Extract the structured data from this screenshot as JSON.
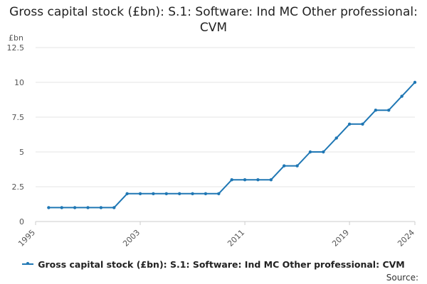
{
  "chart_data": {
    "type": "line",
    "title": "Gross capital stock (£bn): S.1: Software: Ind MC Other professional: CVM",
    "ylabel": "£bn",
    "xlabel": "",
    "xlim": [
      1995,
      2024
    ],
    "ylim": [
      0,
      12.5
    ],
    "yticks": [
      0,
      2.5,
      5,
      7.5,
      10,
      12.5
    ],
    "ytick_labels": [
      "0",
      "2.5",
      "5",
      "7.5",
      "10",
      "12.5"
    ],
    "xticks": [
      1995,
      2003,
      2011,
      2019,
      2024
    ],
    "xtick_labels": [
      "1995",
      "2003",
      "2011",
      "2019",
      "2024"
    ],
    "grid": true,
    "legend_position": "bottom",
    "color": "#1f77b4",
    "series": [
      {
        "name": "Gross capital stock (£bn): S.1: Software: Ind MC Other professional: CVM",
        "x": [
          1996,
          1997,
          1998,
          1999,
          2000,
          2001,
          2002,
          2003,
          2004,
          2005,
          2006,
          2007,
          2008,
          2009,
          2010,
          2011,
          2012,
          2013,
          2014,
          2015,
          2016,
          2017,
          2018,
          2019,
          2020,
          2021,
          2022,
          2023,
          2024
        ],
        "y": [
          1,
          1,
          1,
          1,
          1,
          1,
          2,
          2,
          2,
          2,
          2,
          2,
          2,
          2,
          3,
          3,
          3,
          3,
          4,
          4,
          5,
          5,
          6,
          7,
          7,
          8,
          8,
          9,
          10
        ]
      }
    ]
  },
  "footer": {
    "source_label": "Source:"
  }
}
